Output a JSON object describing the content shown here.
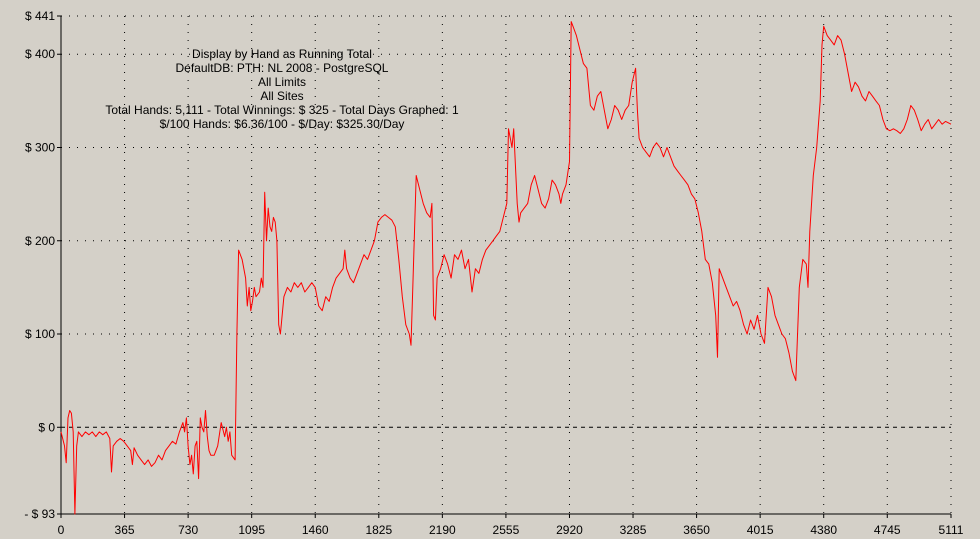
{
  "chart_data": {
    "type": "line",
    "title_lines": [
      "Display by Hand as Running Total",
      "DefaultDB: PTH: NL 2008 - PostgreSQL",
      "All Limits",
      "All Sites",
      "Total Hands: 5,111 - Total Winnings: $ 325 - Total Days Graphed: 1",
      "$/100 Hands: $6.36/100 - $/Day: $325.30/Day"
    ],
    "xlabel": "",
    "ylabel": "",
    "xlim": [
      0,
      5111
    ],
    "ylim": [
      -93,
      441
    ],
    "x_ticks": [
      0,
      365,
      730,
      1095,
      1460,
      1825,
      2190,
      2555,
      2920,
      3285,
      3650,
      4015,
      4380,
      4745,
      5111
    ],
    "x_tick_labels": [
      "0",
      "365",
      "730",
      "1095",
      "1460",
      "1825",
      "2190",
      "2555",
      "2920",
      "3285",
      "3650",
      "4015",
      "4380",
      "4745",
      "5111"
    ],
    "y_ticks": [
      -93,
      0,
      100,
      200,
      300,
      400,
      441
    ],
    "y_tick_labels": [
      "- $ 93",
      "$ 0",
      "$ 100",
      "$ 200",
      "$ 300",
      "$ 400",
      "$ 441"
    ],
    "grid": true,
    "colors": {
      "background": "#d4d0c8",
      "line": "#ff0000",
      "grid": "#000000"
    },
    "series": [
      {
        "points": [
          [
            0,
            -5
          ],
          [
            20,
            -20
          ],
          [
            30,
            -38
          ],
          [
            40,
            10
          ],
          [
            50,
            18
          ],
          [
            60,
            15
          ],
          [
            70,
            -5
          ],
          [
            80,
            -93
          ],
          [
            90,
            -20
          ],
          [
            100,
            -5
          ],
          [
            120,
            -10
          ],
          [
            140,
            -5
          ],
          [
            160,
            -8
          ],
          [
            180,
            -5
          ],
          [
            200,
            -10
          ],
          [
            220,
            -5
          ],
          [
            240,
            -8
          ],
          [
            260,
            -5
          ],
          [
            280,
            -12
          ],
          [
            290,
            -48
          ],
          [
            300,
            -20
          ],
          [
            320,
            -15
          ],
          [
            340,
            -12
          ],
          [
            360,
            -15
          ],
          [
            380,
            -20
          ],
          [
            400,
            -25
          ],
          [
            410,
            -40
          ],
          [
            420,
            -22
          ],
          [
            440,
            -30
          ],
          [
            460,
            -35
          ],
          [
            480,
            -40
          ],
          [
            500,
            -35
          ],
          [
            520,
            -42
          ],
          [
            540,
            -38
          ],
          [
            560,
            -30
          ],
          [
            580,
            -35
          ],
          [
            600,
            -25
          ],
          [
            620,
            -20
          ],
          [
            640,
            -15
          ],
          [
            660,
            -18
          ],
          [
            680,
            -5
          ],
          [
            700,
            5
          ],
          [
            710,
            -5
          ],
          [
            720,
            10
          ],
          [
            730,
            -20
          ],
          [
            740,
            -40
          ],
          [
            750,
            -30
          ],
          [
            760,
            -50
          ],
          [
            770,
            -20
          ],
          [
            780,
            -15
          ],
          [
            790,
            -55
          ],
          [
            800,
            10
          ],
          [
            810,
            0
          ],
          [
            820,
            -5
          ],
          [
            830,
            18
          ],
          [
            840,
            -10
          ],
          [
            850,
            -25
          ],
          [
            860,
            -30
          ],
          [
            880,
            -30
          ],
          [
            900,
            -20
          ],
          [
            920,
            5
          ],
          [
            940,
            -10
          ],
          [
            950,
            0
          ],
          [
            960,
            -15
          ],
          [
            970,
            -5
          ],
          [
            980,
            -30
          ],
          [
            1000,
            -35
          ],
          [
            1010,
            100
          ],
          [
            1020,
            190
          ],
          [
            1040,
            180
          ],
          [
            1060,
            160
          ],
          [
            1070,
            130
          ],
          [
            1080,
            150
          ],
          [
            1090,
            125
          ],
          [
            1100,
            135
          ],
          [
            1110,
            150
          ],
          [
            1120,
            140
          ],
          [
            1140,
            145
          ],
          [
            1150,
            160
          ],
          [
            1160,
            150
          ],
          [
            1170,
            252
          ],
          [
            1180,
            200
          ],
          [
            1190,
            235
          ],
          [
            1200,
            215
          ],
          [
            1210,
            210
          ],
          [
            1220,
            225
          ],
          [
            1230,
            220
          ],
          [
            1240,
            200
          ],
          [
            1250,
            110
          ],
          [
            1260,
            100
          ],
          [
            1280,
            140
          ],
          [
            1300,
            150
          ],
          [
            1320,
            145
          ],
          [
            1340,
            155
          ],
          [
            1360,
            150
          ],
          [
            1380,
            155
          ],
          [
            1400,
            145
          ],
          [
            1420,
            150
          ],
          [
            1440,
            155
          ],
          [
            1460,
            150
          ],
          [
            1480,
            130
          ],
          [
            1500,
            125
          ],
          [
            1520,
            140
          ],
          [
            1540,
            135
          ],
          [
            1560,
            150
          ],
          [
            1580,
            160
          ],
          [
            1600,
            165
          ],
          [
            1620,
            170
          ],
          [
            1630,
            190
          ],
          [
            1640,
            170
          ],
          [
            1660,
            160
          ],
          [
            1680,
            155
          ],
          [
            1700,
            165
          ],
          [
            1720,
            175
          ],
          [
            1740,
            185
          ],
          [
            1760,
            180
          ],
          [
            1780,
            190
          ],
          [
            1800,
            200
          ],
          [
            1820,
            220
          ],
          [
            1840,
            225
          ],
          [
            1860,
            228
          ],
          [
            1880,
            225
          ],
          [
            1900,
            222
          ],
          [
            1920,
            215
          ],
          [
            1940,
            180
          ],
          [
            1960,
            140
          ],
          [
            1980,
            110
          ],
          [
            2000,
            100
          ],
          [
            2010,
            88
          ],
          [
            2020,
            150
          ],
          [
            2040,
            270
          ],
          [
            2060,
            255
          ],
          [
            2080,
            240
          ],
          [
            2100,
            230
          ],
          [
            2120,
            225
          ],
          [
            2130,
            240
          ],
          [
            2140,
            120
          ],
          [
            2150,
            115
          ],
          [
            2160,
            160
          ],
          [
            2180,
            170
          ],
          [
            2200,
            185
          ],
          [
            2220,
            175
          ],
          [
            2240,
            160
          ],
          [
            2260,
            185
          ],
          [
            2280,
            180
          ],
          [
            2300,
            190
          ],
          [
            2320,
            170
          ],
          [
            2340,
            180
          ],
          [
            2360,
            145
          ],
          [
            2380,
            170
          ],
          [
            2400,
            165
          ],
          [
            2420,
            180
          ],
          [
            2440,
            190
          ],
          [
            2460,
            195
          ],
          [
            2480,
            200
          ],
          [
            2500,
            205
          ],
          [
            2520,
            210
          ],
          [
            2540,
            225
          ],
          [
            2560,
            240
          ],
          [
            2570,
            320
          ],
          [
            2580,
            310
          ],
          [
            2590,
            300
          ],
          [
            2600,
            320
          ],
          [
            2620,
            240
          ],
          [
            2630,
            220
          ],
          [
            2640,
            230
          ],
          [
            2660,
            235
          ],
          [
            2680,
            240
          ],
          [
            2700,
            260
          ],
          [
            2720,
            270
          ],
          [
            2740,
            255
          ],
          [
            2760,
            240
          ],
          [
            2780,
            235
          ],
          [
            2800,
            245
          ],
          [
            2820,
            265
          ],
          [
            2840,
            260
          ],
          [
            2860,
            250
          ],
          [
            2870,
            240
          ],
          [
            2880,
            250
          ],
          [
            2900,
            260
          ],
          [
            2920,
            285
          ],
          [
            2930,
            435
          ],
          [
            2940,
            430
          ],
          [
            2960,
            420
          ],
          [
            2980,
            405
          ],
          [
            3000,
            390
          ],
          [
            3020,
            385
          ],
          [
            3040,
            345
          ],
          [
            3060,
            340
          ],
          [
            3080,
            355
          ],
          [
            3100,
            360
          ],
          [
            3120,
            340
          ],
          [
            3140,
            320
          ],
          [
            3160,
            330
          ],
          [
            3180,
            345
          ],
          [
            3200,
            340
          ],
          [
            3220,
            330
          ],
          [
            3240,
            340
          ],
          [
            3260,
            345
          ],
          [
            3280,
            370
          ],
          [
            3300,
            385
          ],
          [
            3310,
            340
          ],
          [
            3320,
            310
          ],
          [
            3340,
            300
          ],
          [
            3360,
            295
          ],
          [
            3380,
            290
          ],
          [
            3400,
            300
          ],
          [
            3420,
            305
          ],
          [
            3440,
            300
          ],
          [
            3460,
            290
          ],
          [
            3480,
            300
          ],
          [
            3500,
            290
          ],
          [
            3520,
            280
          ],
          [
            3540,
            275
          ],
          [
            3560,
            270
          ],
          [
            3580,
            265
          ],
          [
            3600,
            260
          ],
          [
            3620,
            250
          ],
          [
            3640,
            245
          ],
          [
            3660,
            230
          ],
          [
            3680,
            210
          ],
          [
            3700,
            180
          ],
          [
            3720,
            175
          ],
          [
            3740,
            155
          ],
          [
            3760,
            120
          ],
          [
            3770,
            75
          ],
          [
            3780,
            170
          ],
          [
            3800,
            160
          ],
          [
            3820,
            150
          ],
          [
            3840,
            140
          ],
          [
            3860,
            130
          ],
          [
            3880,
            135
          ],
          [
            3900,
            125
          ],
          [
            3920,
            110
          ],
          [
            3940,
            100
          ],
          [
            3960,
            115
          ],
          [
            3980,
            105
          ],
          [
            4000,
            120
          ],
          [
            4020,
            100
          ],
          [
            4040,
            90
          ],
          [
            4060,
            150
          ],
          [
            4080,
            140
          ],
          [
            4100,
            120
          ],
          [
            4120,
            110
          ],
          [
            4140,
            100
          ],
          [
            4160,
            95
          ],
          [
            4180,
            80
          ],
          [
            4200,
            60
          ],
          [
            4220,
            50
          ],
          [
            4240,
            150
          ],
          [
            4260,
            180
          ],
          [
            4280,
            175
          ],
          [
            4290,
            150
          ],
          [
            4300,
            210
          ],
          [
            4320,
            270
          ],
          [
            4340,
            300
          ],
          [
            4360,
            350
          ],
          [
            4370,
            410
          ],
          [
            4380,
            430
          ],
          [
            4400,
            420
          ],
          [
            4420,
            415
          ],
          [
            4440,
            410
          ],
          [
            4460,
            420
          ],
          [
            4480,
            415
          ],
          [
            4500,
            400
          ],
          [
            4520,
            380
          ],
          [
            4540,
            360
          ],
          [
            4560,
            370
          ],
          [
            4580,
            365
          ],
          [
            4600,
            355
          ],
          [
            4620,
            350
          ],
          [
            4640,
            360
          ],
          [
            4660,
            355
          ],
          [
            4680,
            350
          ],
          [
            4700,
            345
          ],
          [
            4720,
            330
          ],
          [
            4740,
            320
          ],
          [
            4760,
            318
          ],
          [
            4780,
            320
          ],
          [
            4800,
            318
          ],
          [
            4820,
            315
          ],
          [
            4840,
            320
          ],
          [
            4860,
            330
          ],
          [
            4880,
            345
          ],
          [
            4900,
            340
          ],
          [
            4920,
            330
          ],
          [
            4940,
            318
          ],
          [
            4960,
            325
          ],
          [
            4980,
            330
          ],
          [
            5000,
            320
          ],
          [
            5020,
            325
          ],
          [
            5040,
            330
          ],
          [
            5060,
            325
          ],
          [
            5080,
            328
          ],
          [
            5111,
            325
          ]
        ]
      }
    ]
  }
}
